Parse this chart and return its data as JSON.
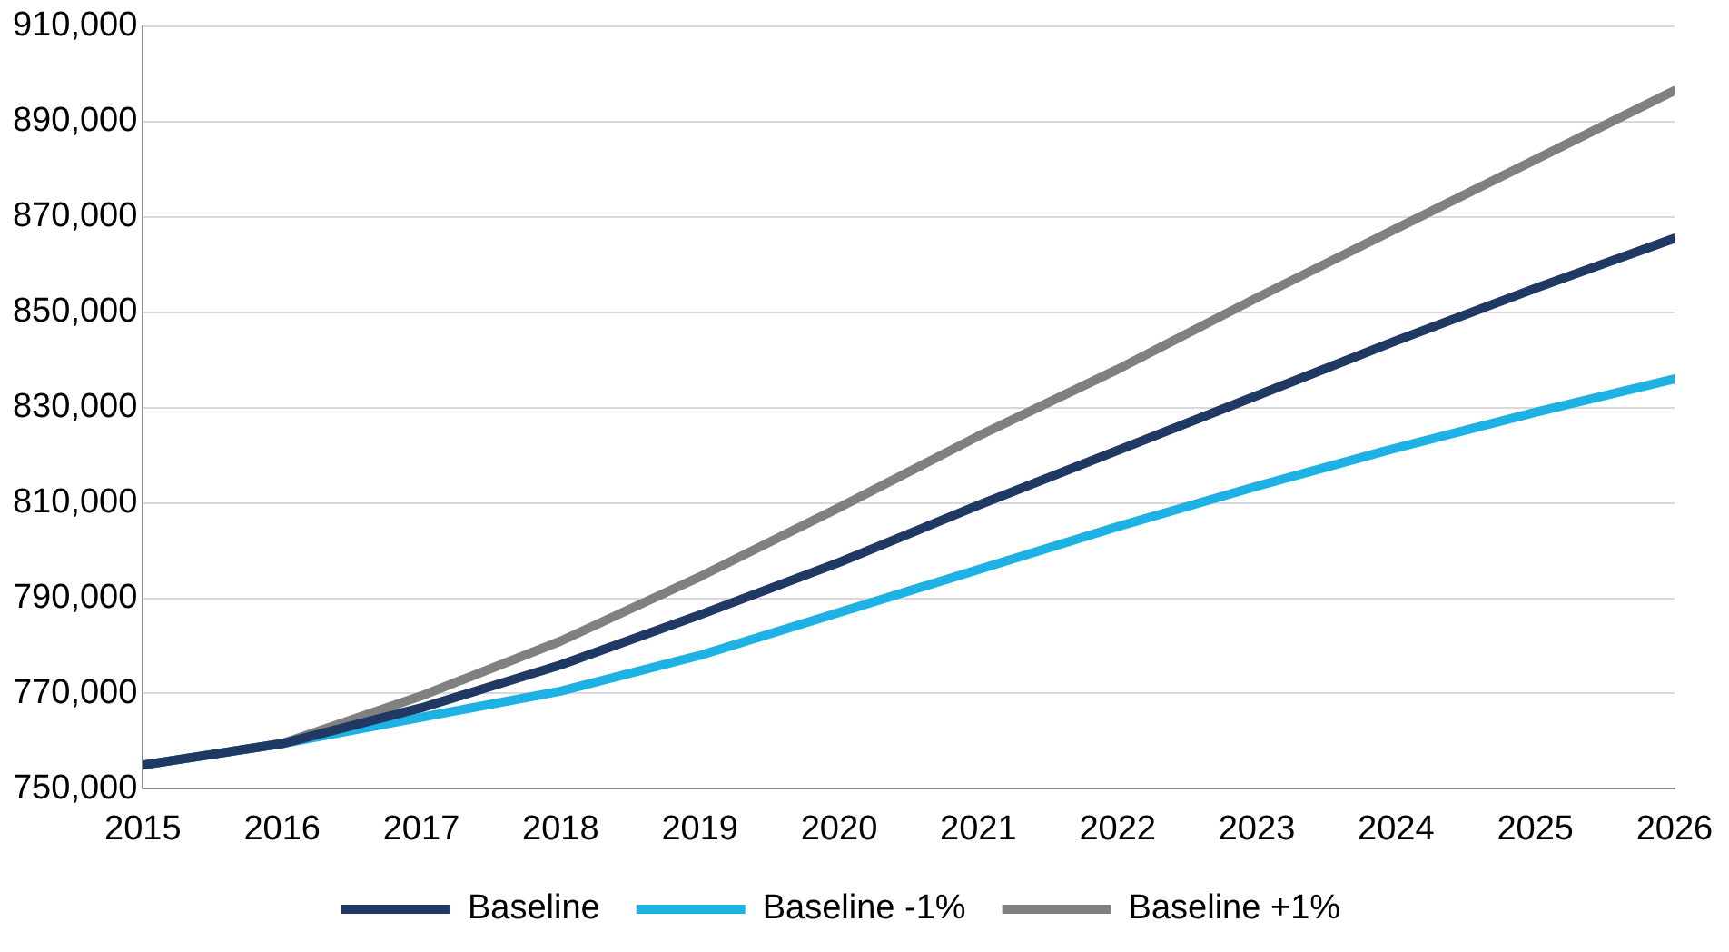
{
  "chart_data": {
    "type": "line",
    "x": [
      2015,
      2016,
      2017,
      2018,
      2019,
      2020,
      2021,
      2022,
      2023,
      2024,
      2025,
      2026
    ],
    "series": [
      {
        "name": "Baseline",
        "color": "#1f3864",
        "values": [
          755000,
          759500,
          767000,
          776000,
          786500,
          797500,
          809500,
          821000,
          832500,
          844000,
          855000,
          865500
        ]
      },
      {
        "name": "Baseline -1%",
        "color": "#1eb1e3",
        "values": [
          755000,
          759500,
          765000,
          770500,
          778000,
          787000,
          796000,
          805000,
          813500,
          821500,
          829000,
          836000
        ]
      },
      {
        "name": "Baseline +1%",
        "color": "#808080",
        "values": [
          755000,
          759500,
          769500,
          781000,
          794500,
          809000,
          824000,
          838000,
          853000,
          867500,
          882000,
          896500
        ]
      }
    ],
    "xlim": [
      2015,
      2026
    ],
    "xticks": [
      2015,
      2016,
      2017,
      2018,
      2019,
      2020,
      2021,
      2022,
      2023,
      2024,
      2025,
      2026
    ],
    "ylim": [
      750000,
      910000
    ],
    "yticks": [
      {
        "value": 750000,
        "label": "750,000"
      },
      {
        "value": 770000,
        "label": "770,000"
      },
      {
        "value": 790000,
        "label": "790,000"
      },
      {
        "value": 810000,
        "label": "810,000"
      },
      {
        "value": 830000,
        "label": "830,000"
      },
      {
        "value": 850000,
        "label": "850,000"
      },
      {
        "value": 870000,
        "label": "870,000"
      },
      {
        "value": 890000,
        "label": "890,000"
      },
      {
        "value": 910000,
        "label": "910,000"
      }
    ],
    "grid": "y",
    "legend": "bottom",
    "marker": "none",
    "line_style": "solid"
  }
}
